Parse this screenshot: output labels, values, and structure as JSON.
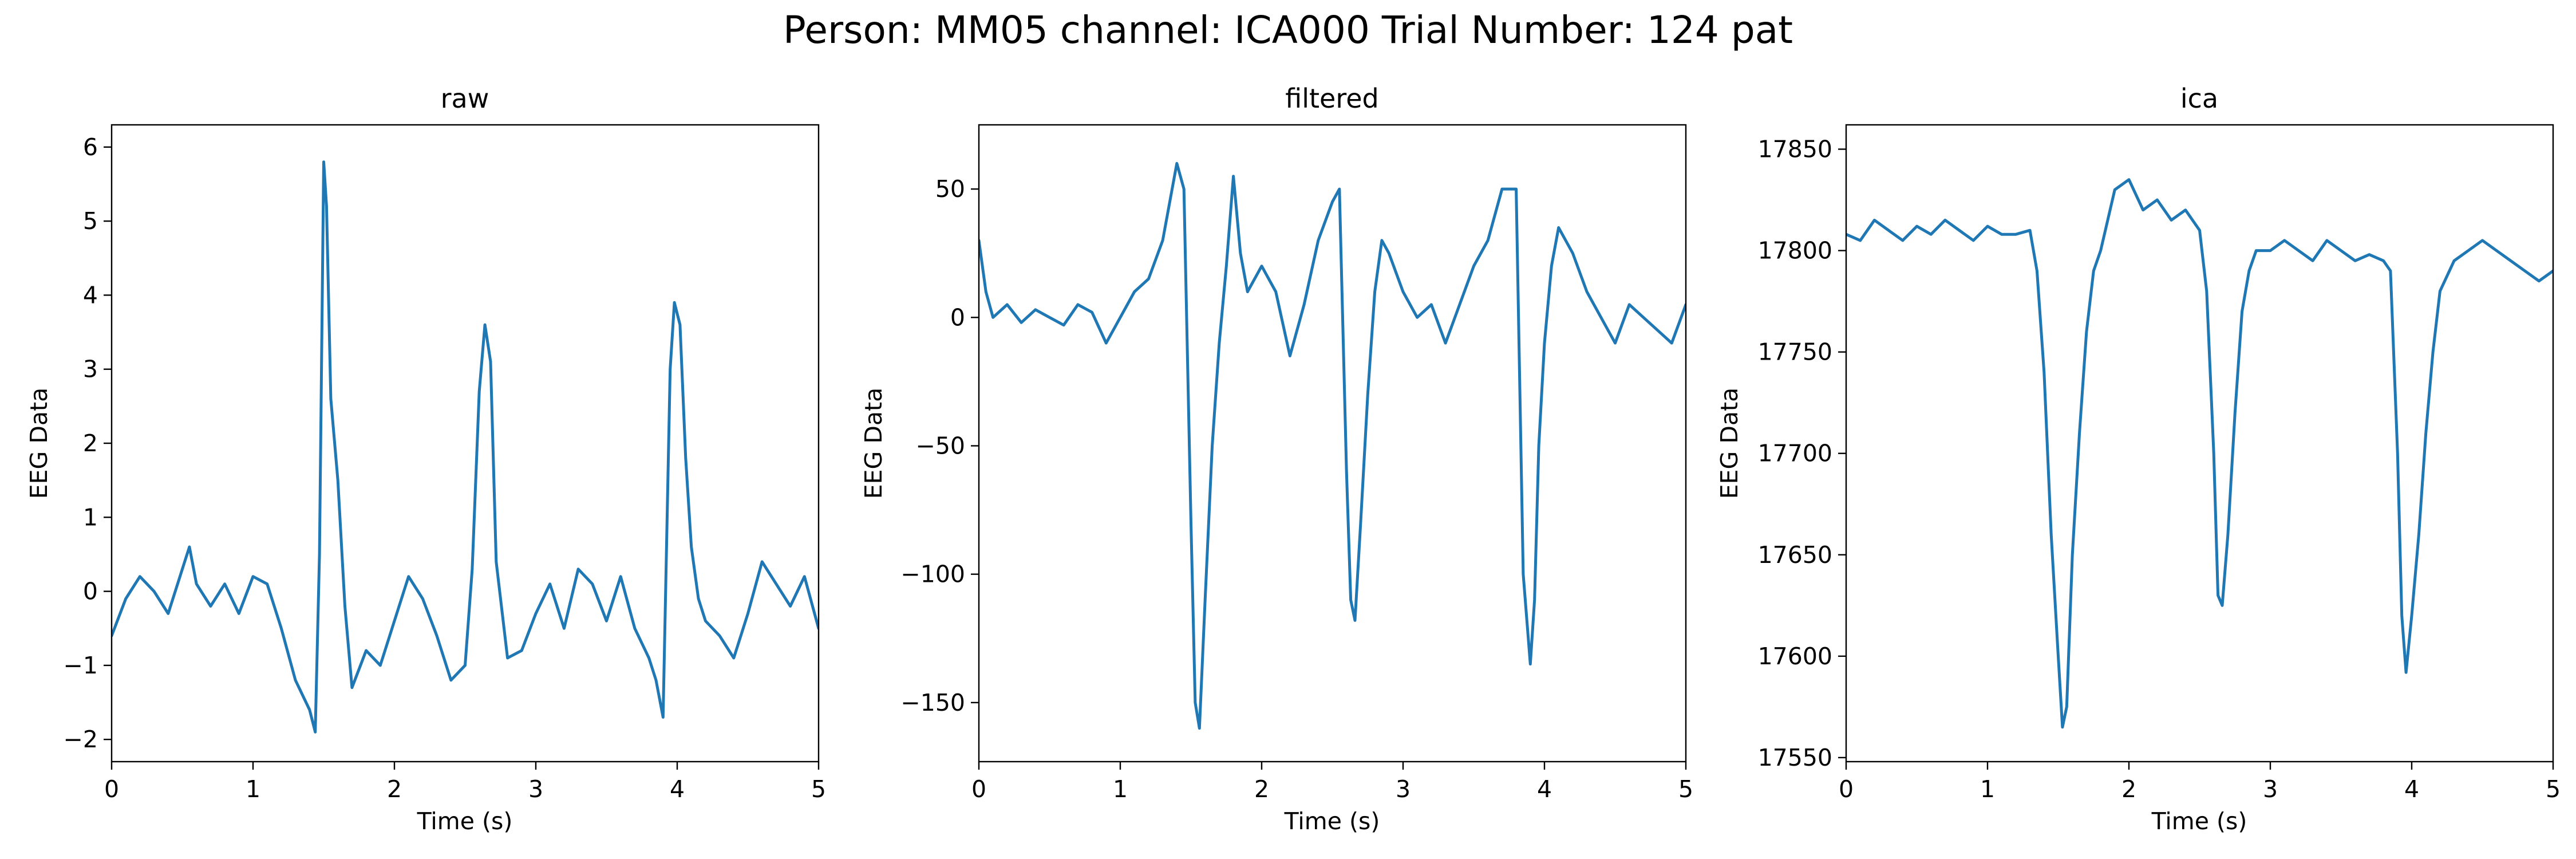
{
  "figure_title": "Person: MM05 channel: ICA000 Trial Number: 124 pat",
  "line_color": "#1f77b4",
  "chart_data": [
    {
      "type": "line",
      "title": "raw",
      "xlabel": "Time (s)",
      "ylabel": "EEG Data",
      "xlim": [
        0,
        5
      ],
      "ylim": [
        -2.3,
        6.3
      ],
      "xticks": [
        0,
        1,
        2,
        3,
        4,
        5
      ],
      "yticks": [
        -2,
        -1,
        0,
        1,
        2,
        3,
        4,
        5,
        6
      ],
      "xtick_labels": [
        "0",
        "1",
        "2",
        "3",
        "4",
        "5"
      ],
      "ytick_labels": [
        "−2",
        "−1",
        "0",
        "1",
        "2",
        "3",
        "4",
        "5",
        "6"
      ],
      "grid": false,
      "series": [
        {
          "x": [
            0,
            0.1,
            0.2,
            0.3,
            0.4,
            0.5,
            0.55,
            0.6,
            0.7,
            0.8,
            0.9,
            1.0,
            1.1,
            1.2,
            1.3,
            1.4,
            1.44,
            1.47,
            1.5,
            1.52,
            1.55,
            1.6,
            1.65,
            1.7,
            1.8,
            1.9,
            2.0,
            2.1,
            2.2,
            2.3,
            2.4,
            2.5,
            2.55,
            2.6,
            2.64,
            2.68,
            2.72,
            2.8,
            2.9,
            3.0,
            3.1,
            3.2,
            3.3,
            3.4,
            3.5,
            3.6,
            3.7,
            3.8,
            3.85,
            3.9,
            3.95,
            3.98,
            4.02,
            4.06,
            4.1,
            4.15,
            4.2,
            4.3,
            4.4,
            4.5,
            4.6,
            4.7,
            4.8,
            4.9,
            5.0
          ],
          "y": [
            -0.6,
            -0.1,
            0.2,
            0.0,
            -0.3,
            0.3,
            0.6,
            0.1,
            -0.2,
            0.1,
            -0.3,
            0.2,
            0.1,
            -0.5,
            -1.2,
            -1.6,
            -1.9,
            0.5,
            5.8,
            5.2,
            2.6,
            1.5,
            -0.2,
            -1.3,
            -0.8,
            -1.0,
            -0.4,
            0.2,
            -0.1,
            -0.6,
            -1.2,
            -1.0,
            0.3,
            2.7,
            3.6,
            3.1,
            0.4,
            -0.9,
            -0.8,
            -0.3,
            0.1,
            -0.5,
            0.3,
            0.1,
            -0.4,
            0.2,
            -0.5,
            -0.9,
            -1.2,
            -1.7,
            3.0,
            3.9,
            3.6,
            1.8,
            0.6,
            -0.1,
            -0.4,
            -0.6,
            -0.9,
            -0.3,
            0.4,
            0.1,
            -0.2,
            0.2,
            -0.5
          ]
        }
      ]
    },
    {
      "type": "line",
      "title": "filtered",
      "xlabel": "Time (s)",
      "ylabel": "EEG Data",
      "xlim": [
        0,
        5
      ],
      "ylim": [
        -173,
        75
      ],
      "xticks": [
        0,
        1,
        2,
        3,
        4,
        5
      ],
      "yticks": [
        -150,
        -100,
        -50,
        0,
        50
      ],
      "xtick_labels": [
        "0",
        "1",
        "2",
        "3",
        "4",
        "5"
      ],
      "ytick_labels": [
        "−150",
        "−100",
        "−50",
        "0",
        "50"
      ],
      "grid": false,
      "series": [
        {
          "x": [
            0,
            0.05,
            0.1,
            0.2,
            0.3,
            0.4,
            0.5,
            0.6,
            0.7,
            0.8,
            0.9,
            1.0,
            1.1,
            1.2,
            1.3,
            1.4,
            1.45,
            1.5,
            1.53,
            1.56,
            1.6,
            1.65,
            1.7,
            1.75,
            1.8,
            1.85,
            1.9,
            2.0,
            2.1,
            2.2,
            2.3,
            2.4,
            2.5,
            2.55,
            2.6,
            2.63,
            2.66,
            2.7,
            2.75,
            2.8,
            2.85,
            2.9,
            3.0,
            3.1,
            3.2,
            3.3,
            3.4,
            3.5,
            3.6,
            3.7,
            3.8,
            3.85,
            3.9,
            3.93,
            3.96,
            4.0,
            4.05,
            4.1,
            4.2,
            4.3,
            4.4,
            4.5,
            4.6,
            4.7,
            4.8,
            4.9,
            5.0
          ],
          "y": [
            30,
            10,
            0,
            5,
            -2,
            3,
            0,
            -3,
            5,
            2,
            -10,
            0,
            10,
            15,
            30,
            60,
            50,
            -80,
            -150,
            -160,
            -110,
            -50,
            -10,
            20,
            55,
            25,
            10,
            20,
            10,
            -15,
            5,
            30,
            45,
            50,
            -60,
            -110,
            -118,
            -80,
            -30,
            10,
            30,
            25,
            10,
            0,
            5,
            -10,
            5,
            20,
            30,
            50,
            50,
            -100,
            -135,
            -110,
            -50,
            -10,
            20,
            35,
            25,
            10,
            0,
            -10,
            5,
            0,
            -5,
            -10,
            5
          ]
        }
      ]
    },
    {
      "type": "line",
      "title": "ica",
      "xlabel": "Time (s)",
      "ylabel": "EEG Data",
      "xlim": [
        0,
        5
      ],
      "ylim": [
        17548,
        17862
      ],
      "xticks": [
        0,
        1,
        2,
        3,
        4,
        5
      ],
      "yticks": [
        17550,
        17600,
        17650,
        17700,
        17750,
        17800,
        17850
      ],
      "xtick_labels": [
        "0",
        "1",
        "2",
        "3",
        "4",
        "5"
      ],
      "ytick_labels": [
        "17550",
        "17600",
        "17650",
        "17700",
        "17750",
        "17800",
        "17850"
      ],
      "grid": false,
      "series": [
        {
          "x": [
            0,
            0.1,
            0.2,
            0.3,
            0.4,
            0.5,
            0.6,
            0.7,
            0.8,
            0.9,
            1.0,
            1.1,
            1.2,
            1.3,
            1.35,
            1.4,
            1.45,
            1.5,
            1.53,
            1.56,
            1.6,
            1.65,
            1.7,
            1.75,
            1.8,
            1.9,
            2.0,
            2.1,
            2.2,
            2.3,
            2.4,
            2.5,
            2.55,
            2.6,
            2.63,
            2.66,
            2.7,
            2.75,
            2.8,
            2.85,
            2.9,
            3.0,
            3.1,
            3.2,
            3.3,
            3.4,
            3.5,
            3.6,
            3.7,
            3.8,
            3.85,
            3.9,
            3.93,
            3.96,
            4.0,
            4.05,
            4.1,
            4.15,
            4.2,
            4.3,
            4.4,
            4.5,
            4.6,
            4.7,
            4.8,
            4.9,
            5.0
          ],
          "y": [
            17808,
            17805,
            17815,
            17810,
            17805,
            17812,
            17808,
            17815,
            17810,
            17805,
            17812,
            17808,
            17808,
            17810,
            17790,
            17740,
            17660,
            17600,
            17565,
            17575,
            17650,
            17710,
            17760,
            17790,
            17800,
            17830,
            17835,
            17820,
            17825,
            17815,
            17820,
            17810,
            17780,
            17700,
            17630,
            17625,
            17660,
            17720,
            17770,
            17790,
            17800,
            17800,
            17805,
            17800,
            17795,
            17805,
            17800,
            17795,
            17798,
            17795,
            17790,
            17700,
            17620,
            17592,
            17620,
            17660,
            17710,
            17750,
            17780,
            17795,
            17800,
            17805,
            17800,
            17795,
            17790,
            17785,
            17790
          ]
        }
      ]
    }
  ]
}
